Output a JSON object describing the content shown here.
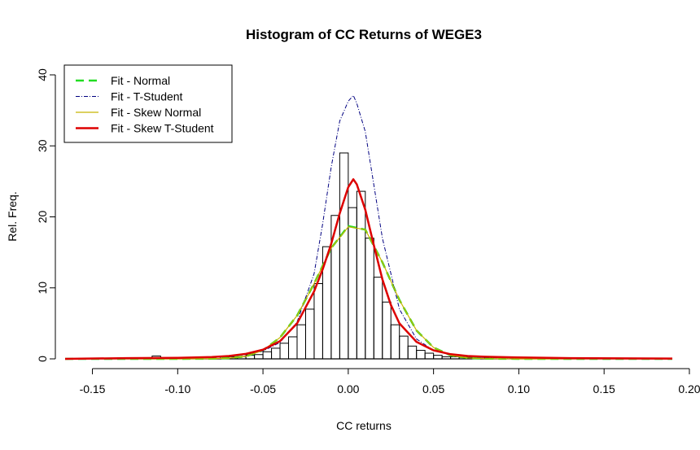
{
  "chart_data": {
    "type": "histogram",
    "title": "Histogram of CC Returns of WEGE3",
    "xlabel": "CC returns",
    "ylabel": "Rel. Freq.",
    "xlim": [
      -0.166,
      0.19
    ],
    "ylim": [
      0,
      40
    ],
    "xticks": [
      -0.15,
      -0.1,
      -0.05,
      0.0,
      0.05,
      0.1,
      0.15,
      0.2
    ],
    "xtick_labels": [
      "-0.15",
      "-0.10",
      "-0.05",
      "0.00",
      "0.05",
      "0.10",
      "0.15",
      "0.20"
    ],
    "yticks": [
      0,
      10,
      20,
      30,
      40
    ],
    "ytick_labels": [
      "0",
      "10",
      "20",
      "30",
      "40"
    ],
    "grid": false,
    "legend_position": "top-left",
    "histogram": {
      "bin_width": 0.005,
      "bins_left": [
        -0.115,
        -0.075,
        -0.07,
        -0.065,
        -0.06,
        -0.055,
        -0.05,
        -0.045,
        -0.04,
        -0.035,
        -0.03,
        -0.025,
        -0.02,
        -0.015,
        -0.01,
        -0.005,
        0.0,
        0.005,
        0.01,
        0.015,
        0.02,
        0.025,
        0.03,
        0.035,
        0.04,
        0.045,
        0.05,
        0.055,
        0.06,
        0.065,
        0.07,
        0.075,
        0.08
      ],
      "freq": [
        0.4,
        0.3,
        0.3,
        0.3,
        0.5,
        0.6,
        1.0,
        1.5,
        2.2,
        3.1,
        4.8,
        7.0,
        10.6,
        15.8,
        20.2,
        29.0,
        21.3,
        23.6,
        17.0,
        11.5,
        8.0,
        4.8,
        3.2,
        1.8,
        1.2,
        0.8,
        0.5,
        0.3,
        0.3,
        0.2,
        0.2,
        0.2,
        0.2
      ]
    },
    "series": [
      {
        "name": "Fit - Normal",
        "color": "#22dd22",
        "style": "dashed",
        "x": [
          -0.166,
          -0.12,
          -0.1,
          -0.08,
          -0.07,
          -0.06,
          -0.05,
          -0.04,
          -0.03,
          -0.02,
          -0.01,
          0.0,
          0.01,
          0.02,
          0.03,
          0.04,
          0.05,
          0.06,
          0.07,
          0.08,
          0.1,
          0.13,
          0.19
        ],
        "y": [
          0,
          0,
          0,
          0.02,
          0.1,
          0.35,
          1.2,
          3.0,
          6.1,
          10.6,
          15.6,
          18.7,
          18.2,
          13.6,
          8.3,
          4.0,
          1.6,
          0.5,
          0.13,
          0.03,
          0,
          0,
          0
        ]
      },
      {
        "name": "Fit - T-Student",
        "color": "#000080",
        "style": "dotdash",
        "x": [
          -0.166,
          -0.12,
          -0.1,
          -0.08,
          -0.07,
          -0.06,
          -0.05,
          -0.04,
          -0.03,
          -0.02,
          -0.015,
          -0.01,
          -0.005,
          0.0,
          0.003,
          0.005,
          0.01,
          0.015,
          0.02,
          0.03,
          0.04,
          0.05,
          0.06,
          0.07,
          0.08,
          0.1,
          0.13,
          0.19
        ],
        "y": [
          0,
          0.05,
          0.1,
          0.2,
          0.35,
          0.6,
          1.1,
          2.3,
          5.2,
          12.0,
          19.0,
          27.0,
          33.5,
          36.3,
          37.1,
          36.0,
          32.0,
          24.5,
          17.0,
          7.0,
          2.8,
          1.2,
          0.55,
          0.3,
          0.2,
          0.1,
          0.05,
          0
        ]
      },
      {
        "name": "Fit - Skew Normal",
        "color": "#c8b400",
        "style": "solid",
        "x": [
          -0.166,
          -0.12,
          -0.1,
          -0.08,
          -0.07,
          -0.06,
          -0.05,
          -0.04,
          -0.03,
          -0.02,
          -0.01,
          0.0,
          0.01,
          0.02,
          0.03,
          0.04,
          0.05,
          0.06,
          0.07,
          0.08,
          0.1,
          0.13,
          0.19
        ],
        "y": [
          0,
          0,
          0,
          0.02,
          0.1,
          0.35,
          1.2,
          3.0,
          6.1,
          10.6,
          15.6,
          18.6,
          18.2,
          13.6,
          8.3,
          4.0,
          1.6,
          0.5,
          0.13,
          0.03,
          0,
          0,
          0
        ]
      },
      {
        "name": "Fit - Skew T-Student",
        "color": "#dd0000",
        "style": "solid",
        "x": [
          -0.166,
          -0.13,
          -0.1,
          -0.08,
          -0.07,
          -0.06,
          -0.05,
          -0.04,
          -0.03,
          -0.02,
          -0.015,
          -0.01,
          -0.005,
          0.0,
          0.003,
          0.005,
          0.01,
          0.015,
          0.02,
          0.025,
          0.03,
          0.04,
          0.05,
          0.06,
          0.07,
          0.08,
          0.1,
          0.13,
          0.19
        ],
        "y": [
          0,
          0.1,
          0.15,
          0.25,
          0.4,
          0.7,
          1.3,
          2.5,
          5.0,
          9.5,
          12.6,
          16.2,
          20.5,
          24.2,
          25.3,
          24.6,
          21.0,
          16.0,
          11.2,
          7.6,
          5.0,
          2.4,
          1.2,
          0.65,
          0.4,
          0.3,
          0.2,
          0.1,
          0.05
        ]
      }
    ]
  }
}
